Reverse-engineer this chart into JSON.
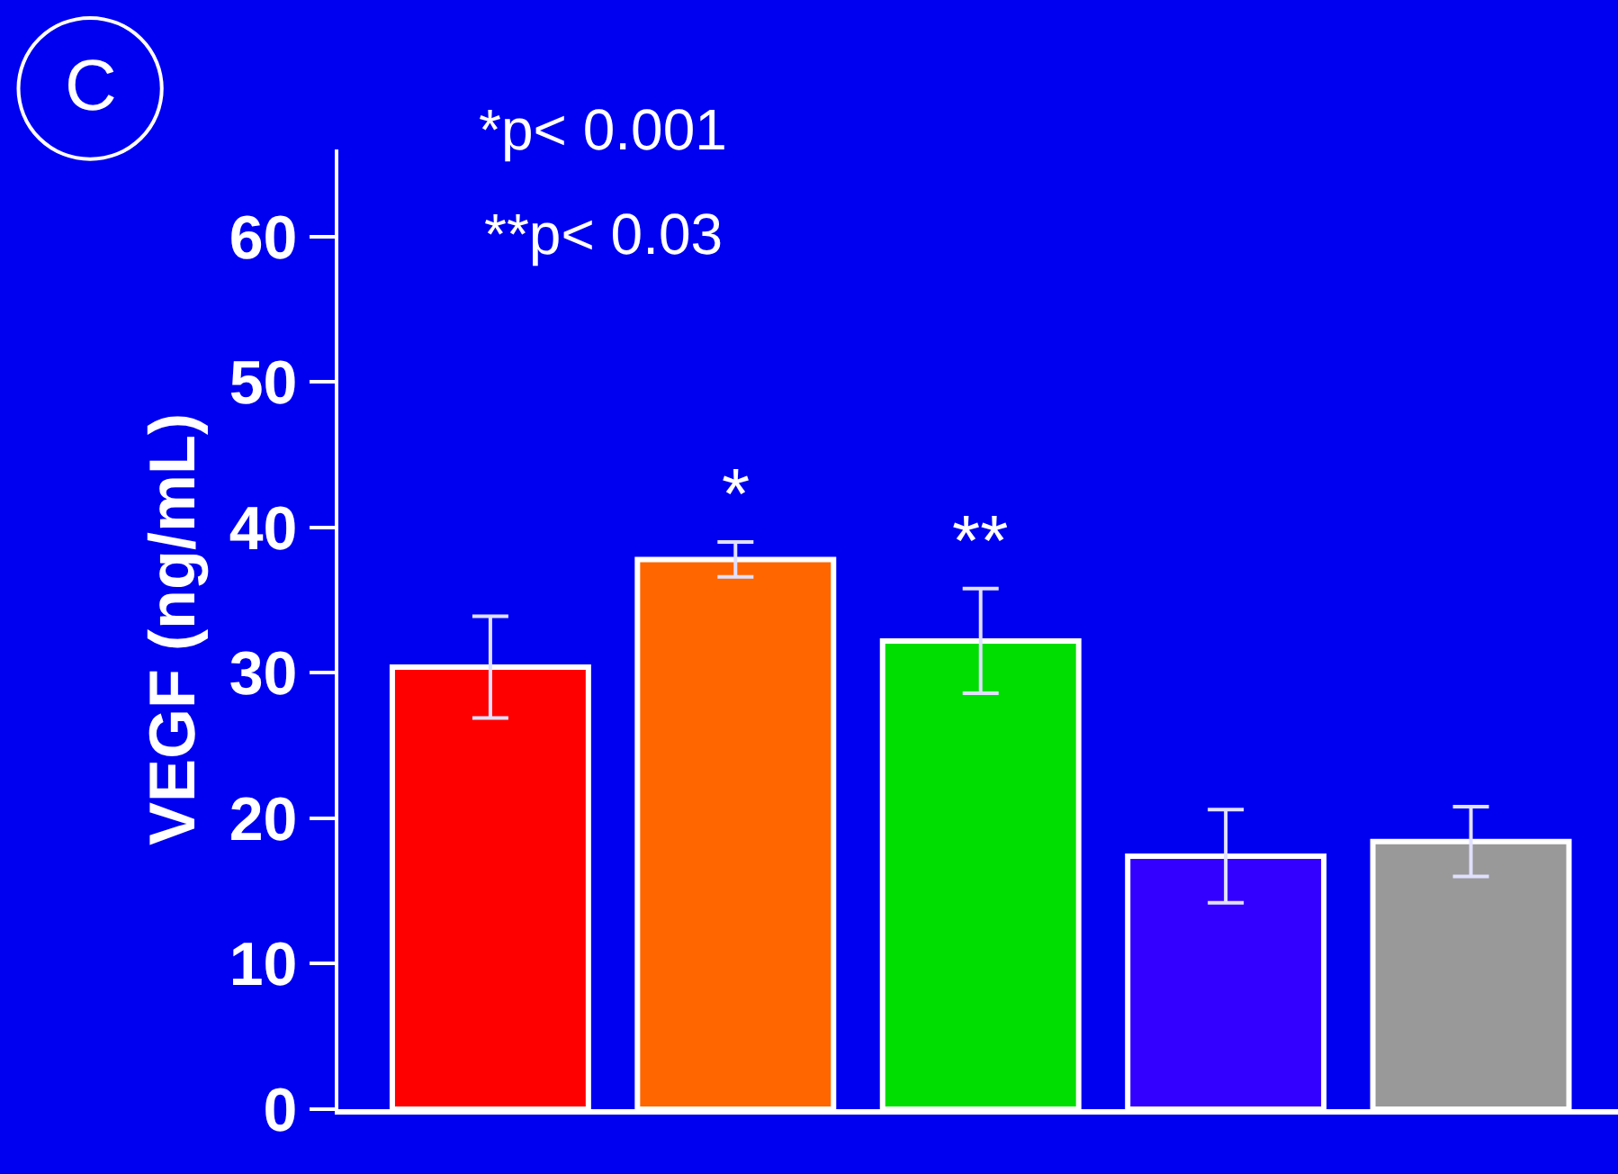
{
  "chart_data": {
    "type": "bar",
    "ylabel": "VEGF (ng/mL)",
    "categories": [
      null,
      null,
      null,
      null,
      null
    ],
    "values": [
      30.4,
      37.8,
      32.2,
      17.4,
      18.4
    ],
    "colors": [
      "#ff0000",
      "#ff6600",
      "#00dd00",
      "#3300ff",
      "#999999"
    ],
    "errors": [
      3.5,
      1.2,
      3.6,
      3.2,
      2.4
    ],
    "value_labels": [
      null,
      "*",
      "**",
      null,
      null
    ],
    "ylim": [
      0,
      66
    ],
    "yticks": [
      0,
      10,
      20,
      30,
      40,
      50,
      60
    ],
    "annotations": [
      "C",
      "*p< 0.001",
      "**p< 0.03"
    ],
    "grid": false,
    "legend": false
  }
}
